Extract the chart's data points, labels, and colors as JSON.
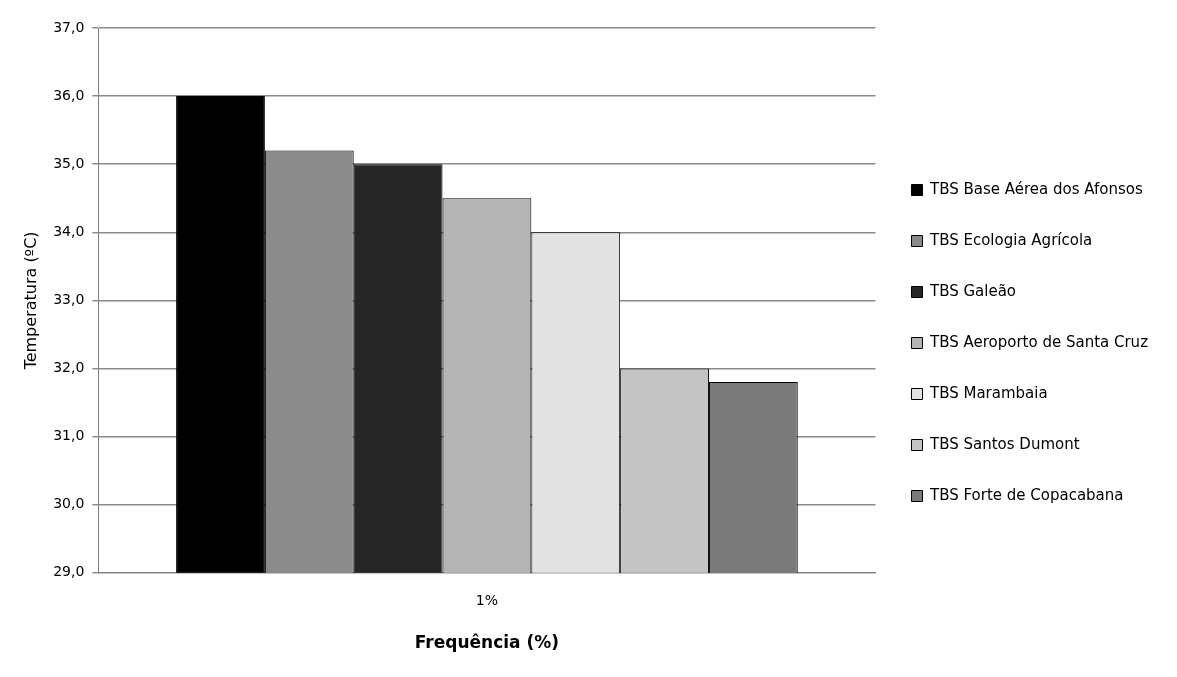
{
  "chart_data": {
    "type": "bar",
    "xlabel": "Frequência (%)",
    "ylabel": "Temperatura (ºC)",
    "categories": [
      "1%"
    ],
    "series": [
      {
        "name": "TBS Base Aérea dos Afonsos",
        "color": "#000000",
        "values": [
          36.0
        ]
      },
      {
        "name": "TBS Ecologia Agrícola",
        "color": "#8a8a8a",
        "values": [
          35.2
        ]
      },
      {
        "name": "TBS Galeão",
        "color": "#262626",
        "values": [
          35.0
        ]
      },
      {
        "name": "TBS Aeroporto de Santa Cruz",
        "color": "#b4b4b4",
        "values": [
          34.5
        ]
      },
      {
        "name": "TBS Marambaia",
        "color": "#e2e2e2",
        "values": [
          34.0
        ]
      },
      {
        "name": "TBS Santos Dumont",
        "color": "#c4c4c4",
        "values": [
          32.0
        ]
      },
      {
        "name": "TBS Forte de Copacabana",
        "color": "#7a7a7a",
        "values": [
          31.8
        ]
      }
    ],
    "ylim": [
      29,
      37
    ],
    "yticks": [
      {
        "value": 29,
        "label": "29,0"
      },
      {
        "value": 30,
        "label": "30,0"
      },
      {
        "value": 31,
        "label": "31,0"
      },
      {
        "value": 32,
        "label": "32,0"
      },
      {
        "value": 33,
        "label": "33,0"
      },
      {
        "value": 34,
        "label": "34,0"
      },
      {
        "value": 35,
        "label": "35,0"
      },
      {
        "value": 36,
        "label": "36,0"
      },
      {
        "value": 37,
        "label": "37,0"
      }
    ],
    "grid": "y",
    "legend": "right"
  }
}
